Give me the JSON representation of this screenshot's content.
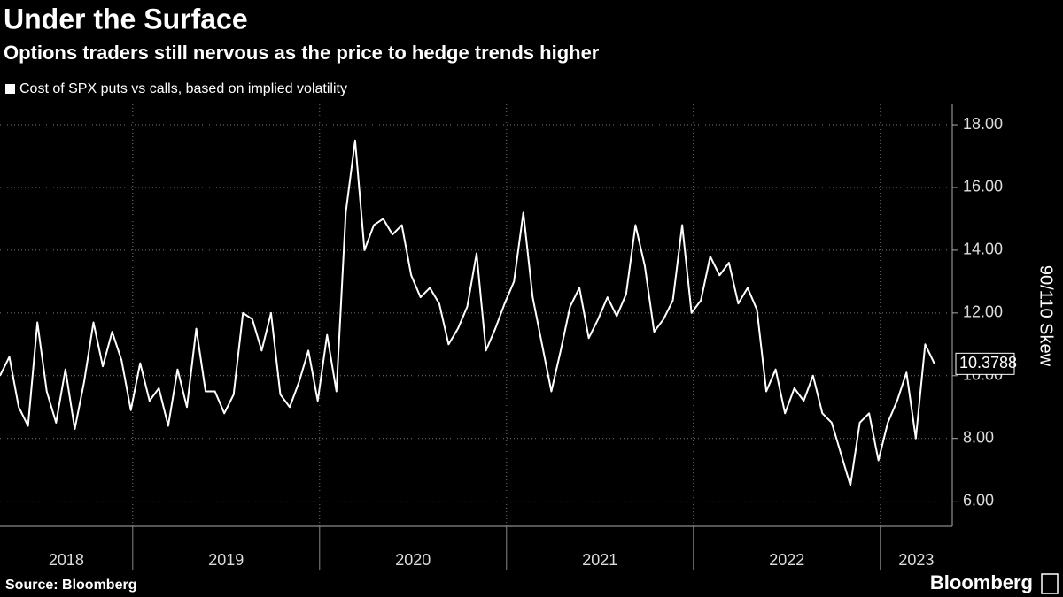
{
  "chart_data": {
    "type": "line",
    "title": "Under the Surface",
    "subtitle": "Options traders still nervous as the price to hedge trends higher",
    "y_label": "90/110 Skew",
    "source": "Source: Bloomberg",
    "brand": "Bloomberg",
    "x": [
      2018.29,
      2018.34,
      2018.39,
      2018.44,
      2018.49,
      2018.54,
      2018.59,
      2018.64,
      2018.69,
      2018.74,
      2018.79,
      2018.84,
      2018.89,
      2018.94,
      2018.99,
      2019.04,
      2019.09,
      2019.14,
      2019.19,
      2019.24,
      2019.29,
      2019.34,
      2019.39,
      2019.44,
      2019.49,
      2019.54,
      2019.59,
      2019.64,
      2019.69,
      2019.74,
      2019.79,
      2019.84,
      2019.89,
      2019.94,
      2019.99,
      2020.04,
      2020.09,
      2020.14,
      2020.19,
      2020.24,
      2020.29,
      2020.34,
      2020.39,
      2020.44,
      2020.49,
      2020.54,
      2020.59,
      2020.64,
      2020.69,
      2020.74,
      2020.79,
      2020.84,
      2020.89,
      2020.94,
      2020.99,
      2021.04,
      2021.09,
      2021.14,
      2021.19,
      2021.24,
      2021.29,
      2021.34,
      2021.39,
      2021.44,
      2021.49,
      2021.54,
      2021.59,
      2021.64,
      2021.69,
      2021.74,
      2021.79,
      2021.84,
      2021.89,
      2021.94,
      2021.99,
      2022.04,
      2022.09,
      2022.14,
      2022.19,
      2022.24,
      2022.29,
      2022.34,
      2022.39,
      2022.44,
      2022.49,
      2022.54,
      2022.59,
      2022.64,
      2022.69,
      2022.74,
      2022.79,
      2022.84,
      2022.89,
      2022.94,
      2022.99,
      2023.04,
      2023.09,
      2023.14,
      2023.19,
      2023.24,
      2023.29
    ],
    "series": [
      {
        "name": "Cost of SPX puts vs calls, based on implied volatility",
        "color": "#ffffff",
        "values": [
          10.0,
          10.6,
          9.0,
          8.4,
          11.7,
          9.5,
          8.5,
          10.2,
          8.3,
          9.8,
          11.7,
          10.3,
          11.4,
          10.5,
          8.9,
          10.4,
          9.2,
          9.6,
          8.4,
          10.2,
          9.0,
          11.5,
          9.5,
          9.5,
          8.8,
          9.4,
          12.0,
          11.8,
          10.8,
          12.0,
          9.4,
          9.0,
          9.8,
          10.8,
          9.2,
          11.3,
          9.5,
          15.2,
          17.5,
          14.0,
          14.8,
          15.0,
          14.5,
          14.8,
          13.2,
          12.5,
          12.8,
          12.3,
          11.0,
          11.5,
          12.2,
          13.9,
          10.8,
          11.5,
          12.3,
          13.0,
          15.2,
          12.5,
          11.0,
          9.5,
          10.8,
          12.2,
          12.8,
          11.2,
          11.8,
          12.5,
          11.9,
          12.6,
          14.8,
          13.5,
          11.4,
          11.8,
          12.4,
          14.8,
          12.0,
          12.4,
          13.8,
          13.2,
          13.6,
          12.3,
          12.8,
          12.1,
          9.5,
          10.2,
          8.8,
          9.6,
          9.2,
          10.0,
          8.8,
          8.5,
          7.5,
          6.5,
          8.5,
          8.8,
          7.3,
          8.5,
          9.2,
          10.1,
          8.0,
          11.0,
          10.3788
        ]
      }
    ],
    "xlim": [
      2018.29,
      2023.385
    ],
    "xticks": [
      2018,
      2019,
      2020,
      2021,
      2022,
      2023
    ],
    "ylim": [
      5.2,
      18.65
    ],
    "yticks": [
      {
        "value": 6,
        "label": "6.00"
      },
      {
        "value": 8,
        "label": "8.00"
      },
      {
        "value": 10,
        "label": "10.00"
      },
      {
        "value": 12,
        "label": "12.00"
      },
      {
        "value": 14,
        "label": "14.00"
      },
      {
        "value": 16,
        "label": "16.00"
      },
      {
        "value": 18,
        "label": "18.00"
      }
    ],
    "grid": true
  }
}
